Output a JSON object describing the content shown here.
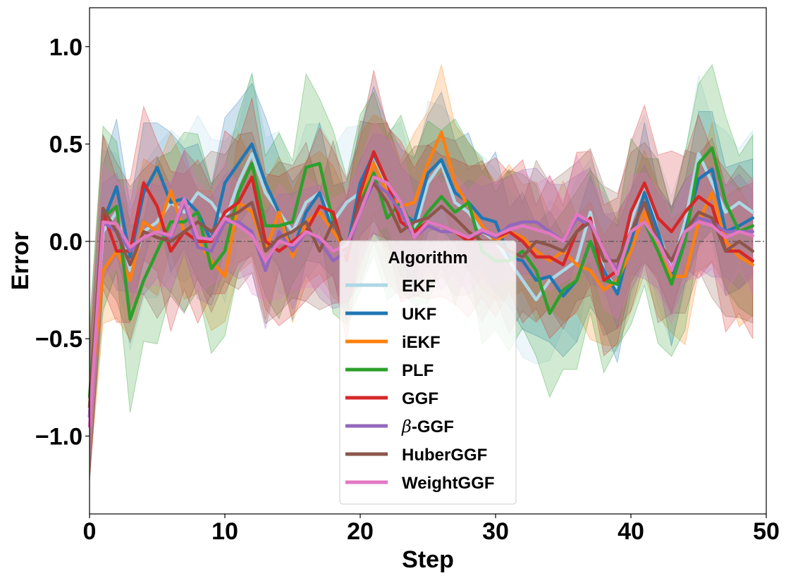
{
  "chart_data": {
    "type": "line",
    "title": "",
    "xlabel": "Step",
    "ylabel": "Error",
    "xlim": [
      0,
      50
    ],
    "ylim": [
      -1.4,
      1.2
    ],
    "x_ticks": [
      "0",
      "10",
      "20",
      "30",
      "40",
      "50"
    ],
    "y_ticks": [
      "1.0",
      "0.5",
      "0.0",
      "−0.5",
      "−1.0"
    ],
    "reference_line": 0,
    "grid": false,
    "legend": {
      "title": "Algorithm",
      "placement": "lower-center"
    },
    "x": [
      0,
      1,
      2,
      3,
      4,
      5,
      6,
      7,
      8,
      9,
      10,
      11,
      12,
      13,
      14,
      15,
      16,
      17,
      18,
      19,
      20,
      21,
      22,
      23,
      24,
      25,
      26,
      27,
      28,
      29,
      30,
      31,
      32,
      33,
      34,
      35,
      36,
      37,
      38,
      39,
      40,
      41,
      42,
      43,
      44,
      45,
      46,
      47,
      48,
      49
    ],
    "series": [
      {
        "name": "EKF",
        "color": "#add8e6",
        "band": 0.35,
        "values": [
          -0.85,
          0.05,
          0.15,
          -0.15,
          0.05,
          0.1,
          0.2,
          0.15,
          0.25,
          0.2,
          0.1,
          0.3,
          0.45,
          0.25,
          0.15,
          0.05,
          0.2,
          0.25,
          0.1,
          0.2,
          0.25,
          0.45,
          0.25,
          0.2,
          0.05,
          0.3,
          0.4,
          0.2,
          0.15,
          0.05,
          0.0,
          -0.1,
          -0.2,
          -0.3,
          -0.2,
          -0.15,
          -0.1,
          0.15,
          -0.15,
          -0.25,
          0.1,
          0.3,
          0.05,
          -0.15,
          0.1,
          0.45,
          0.3,
          0.15,
          0.2,
          0.15
        ]
      },
      {
        "name": "UKF",
        "color": "#1f77b4",
        "band": 0.3,
        "values": [
          -0.9,
          0.1,
          0.28,
          -0.08,
          0.25,
          0.38,
          0.2,
          0.22,
          0.15,
          0.0,
          0.3,
          0.4,
          0.5,
          0.3,
          0.15,
          -0.05,
          0.15,
          0.25,
          0.05,
          -0.05,
          0.3,
          0.45,
          0.3,
          0.15,
          0.1,
          0.35,
          0.42,
          0.25,
          0.2,
          0.12,
          0.1,
          -0.08,
          -0.1,
          -0.2,
          -0.18,
          -0.28,
          -0.2,
          0.0,
          -0.15,
          -0.27,
          0.0,
          0.25,
          0.05,
          -0.18,
          0.05,
          0.32,
          0.37,
          0.05,
          0.08,
          0.12
        ]
      },
      {
        "name": "iEKF",
        "color": "#ff7f0e",
        "band": 0.3,
        "values": [
          -0.85,
          -0.15,
          -0.05,
          -0.2,
          0.1,
          0.05,
          0.26,
          0.05,
          0.0,
          -0.1,
          -0.18,
          0.2,
          0.15,
          -0.05,
          0.15,
          -0.08,
          0.1,
          0.15,
          0.05,
          -0.05,
          0.2,
          0.4,
          0.25,
          0.18,
          0.2,
          0.4,
          0.56,
          0.3,
          0.18,
          0.08,
          0.0,
          0.05,
          0.02,
          -0.05,
          -0.1,
          -0.05,
          -0.12,
          -0.15,
          -0.25,
          -0.2,
          -0.05,
          0.15,
          -0.05,
          -0.18,
          -0.18,
          0.1,
          0.25,
          0.0,
          -0.08,
          -0.12
        ]
      },
      {
        "name": "PLF",
        "color": "#2ca02c",
        "band": 0.4,
        "values": [
          -0.8,
          0.12,
          0.18,
          -0.4,
          -0.2,
          -0.05,
          0.1,
          0.1,
          0.15,
          -0.14,
          -0.05,
          0.25,
          0.4,
          0.08,
          0.08,
          0.1,
          0.38,
          0.4,
          0.1,
          -0.05,
          0.2,
          0.35,
          0.12,
          0.2,
          0.05,
          0.15,
          0.23,
          0.15,
          0.2,
          -0.05,
          -0.1,
          -0.1,
          -0.05,
          -0.15,
          -0.37,
          -0.25,
          -0.2,
          0.0,
          -0.2,
          -0.22,
          0.05,
          0.1,
          -0.05,
          -0.22,
          0.0,
          0.4,
          0.48,
          0.2,
          0.05,
          0.08
        ]
      },
      {
        "name": "GGF",
        "color": "#d62728",
        "band": 0.35,
        "values": [
          -0.9,
          0.15,
          -0.05,
          -0.05,
          0.3,
          0.18,
          -0.05,
          0.05,
          0.0,
          0.0,
          0.15,
          0.2,
          0.33,
          0.0,
          -0.05,
          0.0,
          0.05,
          0.18,
          0.15,
          -0.1,
          0.25,
          0.46,
          0.3,
          0.1,
          0.05,
          0.1,
          0.08,
          0.05,
          0.0,
          0.05,
          0.02,
          0.05,
          0.0,
          -0.08,
          -0.08,
          -0.12,
          0.05,
          0.12,
          -0.2,
          -0.15,
          0.15,
          0.3,
          0.12,
          0.05,
          0.15,
          0.23,
          0.18,
          -0.05,
          -0.05,
          -0.1
        ]
      },
      {
        "name": "β-GGF",
        "color": "#9467bd",
        "band": 0.25,
        "values": [
          -0.9,
          0.1,
          0.05,
          -0.05,
          0.02,
          0.05,
          0.02,
          0.2,
          -0.03,
          -0.05,
          0.1,
          0.1,
          0.05,
          -0.15,
          0.05,
          -0.05,
          0.05,
          0.0,
          -0.1,
          -0.05,
          0.15,
          0.3,
          0.25,
          0.15,
          0.02,
          0.08,
          0.05,
          0.05,
          0.02,
          0.05,
          0.02,
          0.08,
          0.1,
          0.1,
          0.05,
          0.0,
          0.12,
          0.08,
          -0.05,
          -0.15,
          0.05,
          0.1,
          0.0,
          -0.1,
          0.05,
          0.12,
          0.1,
          0.05,
          0.05,
          0.05
        ]
      },
      {
        "name": "HuberGGF",
        "color": "#8c564b",
        "band": 0.35,
        "values": [
          -0.85,
          0.17,
          0.05,
          -0.12,
          0.05,
          0.02,
          0.0,
          0.05,
          0.1,
          0.05,
          0.12,
          0.15,
          0.2,
          -0.05,
          0.02,
          0.05,
          0.1,
          -0.05,
          0.1,
          -0.05,
          0.2,
          0.3,
          0.2,
          0.05,
          0.1,
          0.12,
          0.18,
          0.12,
          0.05,
          0.0,
          0.0,
          -0.05,
          -0.08,
          0.0,
          -0.02,
          -0.05,
          0.05,
          0.1,
          -0.1,
          -0.1,
          0.05,
          0.2,
          0.0,
          -0.1,
          0.05,
          0.15,
          0.12,
          -0.05,
          0.0,
          -0.05
        ]
      },
      {
        "name": "WeightGGF",
        "color": "#e377c2",
        "band": 0.25,
        "values": [
          -0.95,
          0.1,
          0.09,
          -0.03,
          0.02,
          0.05,
          0.03,
          0.22,
          0.02,
          0.01,
          0.12,
          0.08,
          0.03,
          -0.1,
          0.0,
          -0.02,
          0.05,
          0.02,
          -0.05,
          -0.02,
          0.15,
          0.33,
          0.3,
          0.2,
          0.02,
          0.1,
          0.08,
          0.05,
          0.02,
          0.06,
          0.03,
          0.06,
          0.08,
          0.06,
          0.04,
          0.0,
          0.14,
          0.1,
          -0.05,
          -0.17,
          0.05,
          0.1,
          0.0,
          -0.15,
          0.05,
          0.1,
          0.08,
          0.02,
          0.05,
          0.03
        ]
      }
    ]
  }
}
